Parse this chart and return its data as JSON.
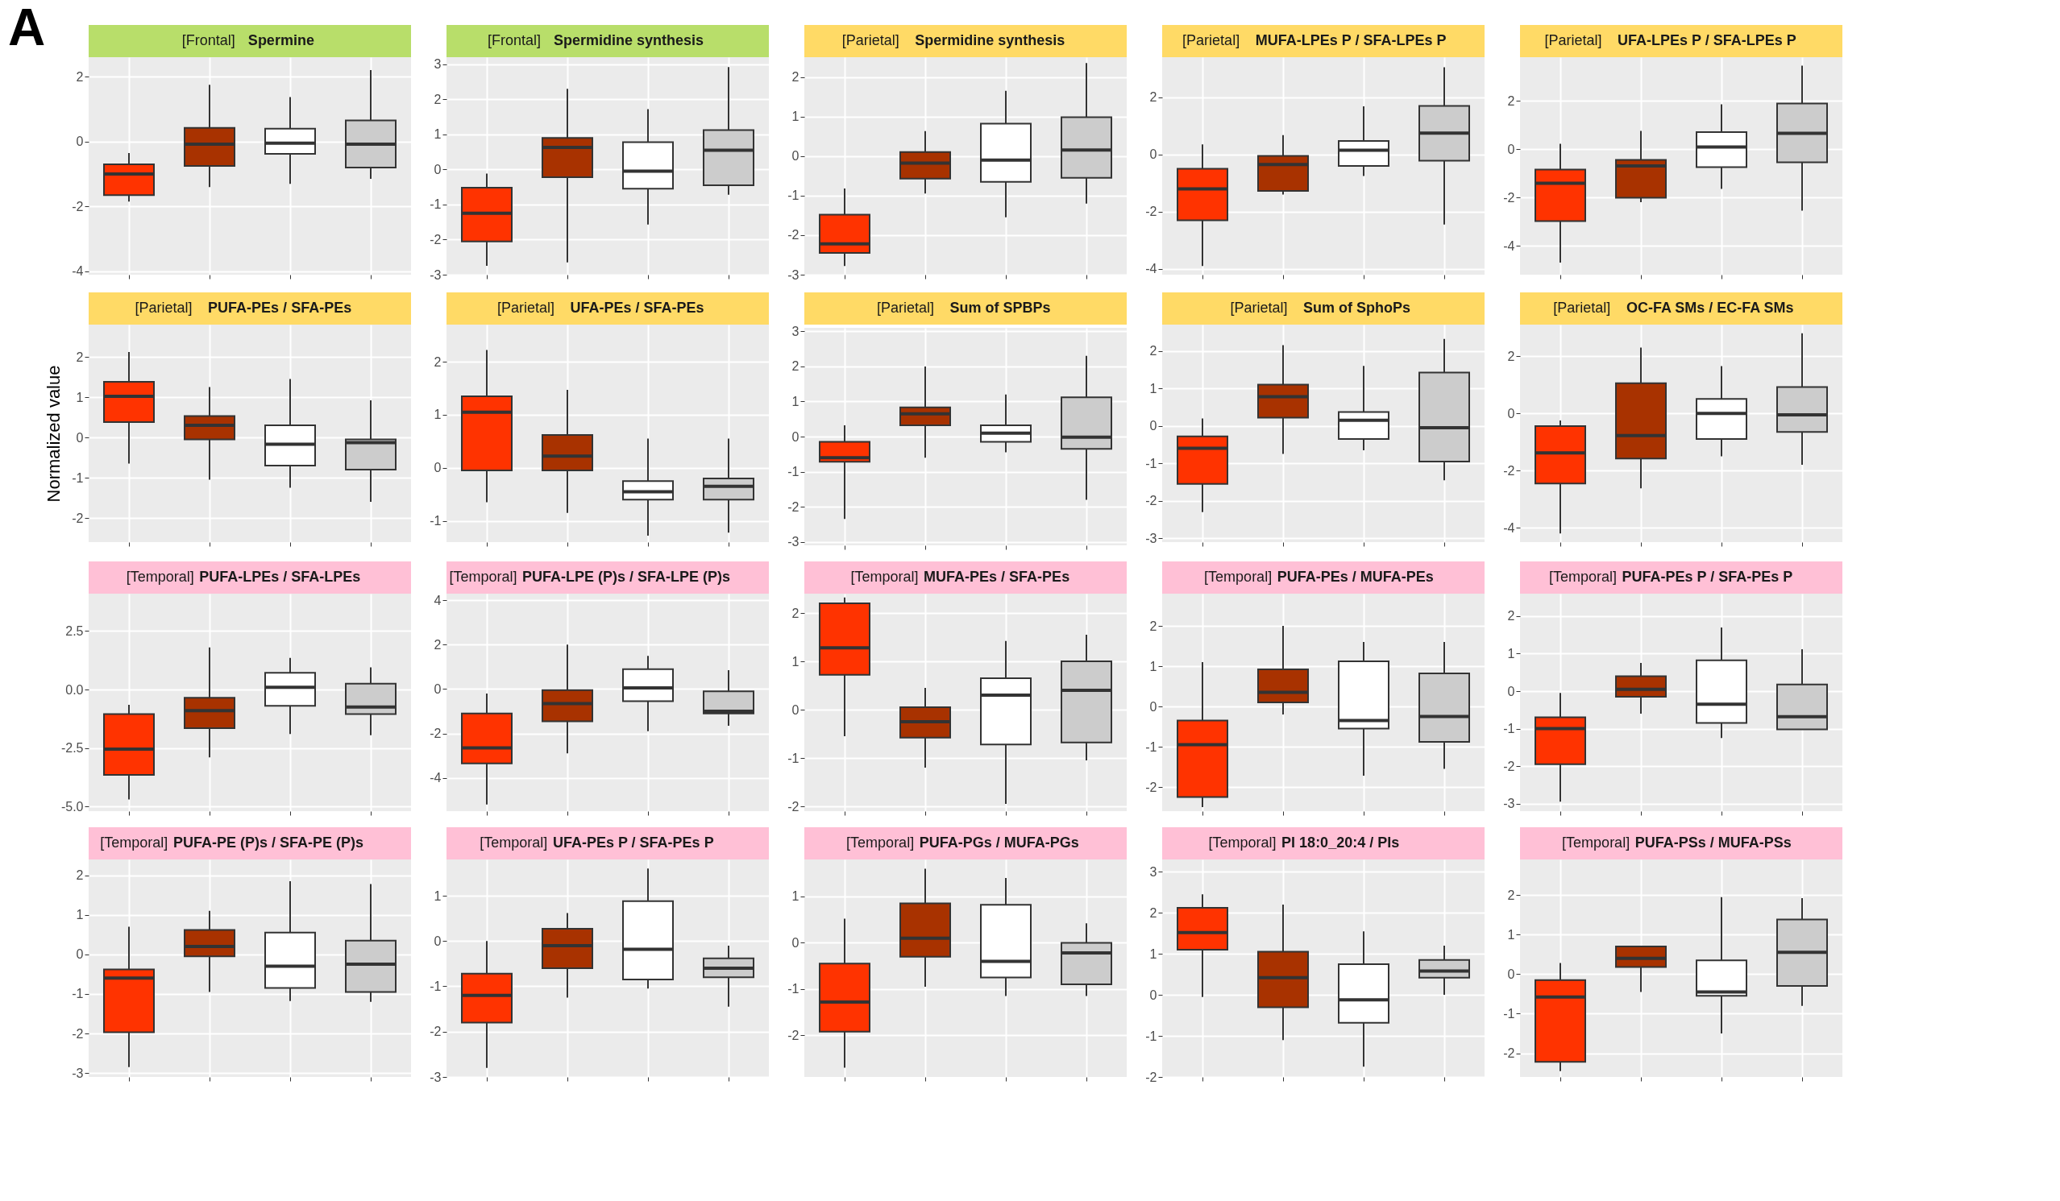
{
  "chart_data": [
    {
      "type": "box",
      "title": "[Frontal] Spermine",
      "annotations": [
        "A"
      ],
      "categories": [
        null,
        null,
        null,
        null
      ],
      "colors": [
        "#ff3300",
        "#a83200",
        "#ffffff",
        "#cccccc"
      ],
      "ylim": [
        -4.1,
        2.6
      ],
      "yticks": [
        -4,
        -2,
        0,
        2
      ],
      "grid": true,
      "tick_labels": "y",
      "boxes": [
        {
          "low": -1.85,
          "q1": -1.65,
          "median": -1.0,
          "q3": -0.7,
          "high": -0.35
        },
        {
          "low": -1.4,
          "q1": -0.75,
          "median": -0.08,
          "q3": 0.42,
          "high": 1.75
        },
        {
          "low": -1.3,
          "q1": -0.38,
          "median": -0.05,
          "q3": 0.4,
          "high": 1.37
        },
        {
          "low": -1.15,
          "q1": -0.8,
          "median": -0.08,
          "q3": 0.65,
          "high": 2.2
        }
      ]
    },
    {
      "type": "box",
      "title": "[Frontal] Spermidine synthesis",
      "categories": [
        null,
        null,
        null,
        null
      ],
      "colors": [
        "#ff3300",
        "#a83200",
        "#ffffff",
        "#cccccc"
      ],
      "ylim": [
        -3,
        3.2
      ],
      "yticks": [
        -3,
        -2,
        -1,
        0,
        1,
        2,
        3
      ],
      "grid": true,
      "tick_labels": "y",
      "boxes": [
        {
          "low": -2.75,
          "q1": -2.05,
          "median": -1.25,
          "q3": -0.52,
          "high": -0.12
        },
        {
          "low": -2.65,
          "q1": -0.22,
          "median": 0.63,
          "q3": 0.9,
          "high": 2.3
        },
        {
          "low": -1.57,
          "q1": -0.55,
          "median": -0.05,
          "q3": 0.78,
          "high": 1.72
        },
        {
          "low": -0.72,
          "q1": -0.45,
          "median": 0.55,
          "q3": 1.12,
          "high": 2.92
        }
      ]
    },
    {
      "type": "box",
      "title": "[Parietal] Spermidine synthesis",
      "categories": [
        null,
        null,
        null,
        null
      ],
      "colors": [
        "#ff3300",
        "#a83200",
        "#ffffff",
        "#cccccc"
      ],
      "ylim": [
        -3,
        2.5
      ],
      "yticks": [
        -3,
        -2,
        -1,
        0,
        1,
        2
      ],
      "grid": true,
      "tick_labels": "y",
      "boxes": [
        {
          "low": -2.78,
          "q1": -2.45,
          "median": -2.22,
          "q3": -1.48,
          "high": -0.82
        },
        {
          "low": -0.95,
          "q1": -0.57,
          "median": -0.18,
          "q3": 0.1,
          "high": 0.63
        },
        {
          "low": -1.55,
          "q1": -0.65,
          "median": -0.1,
          "q3": 0.82,
          "high": 1.65
        },
        {
          "low": -1.2,
          "q1": -0.55,
          "median": 0.15,
          "q3": 0.98,
          "high": 2.35
        }
      ]
    },
    {
      "type": "box",
      "title": "[Parietal] MUFA-LPEs P / SFA-LPEs P",
      "categories": [
        null,
        null,
        null,
        null
      ],
      "colors": [
        "#ff3300",
        "#a83200",
        "#ffffff",
        "#cccccc"
      ],
      "ylim": [
        -4.2,
        3.4
      ],
      "yticks": [
        -4,
        -2,
        0,
        2
      ],
      "grid": true,
      "tick_labels": "y",
      "boxes": [
        {
          "low": -3.9,
          "q1": -2.3,
          "median": -1.2,
          "q3": -0.5,
          "high": 0.35
        },
        {
          "low": -1.4,
          "q1": -1.27,
          "median": -0.35,
          "q3": -0.05,
          "high": 0.68
        },
        {
          "low": -0.75,
          "q1": -0.4,
          "median": 0.15,
          "q3": 0.47,
          "high": 1.68
        },
        {
          "low": -2.45,
          "q1": -0.22,
          "median": 0.75,
          "q3": 1.7,
          "high": 3.05
        }
      ]
    },
    {
      "type": "box",
      "title": "[Parietal] UFA-LPEs P / SFA-LPEs P",
      "categories": [
        null,
        null,
        null,
        null
      ],
      "colors": [
        "#ff3300",
        "#a83200",
        "#ffffff",
        "#cccccc"
      ],
      "ylim": [
        -5.2,
        3.8
      ],
      "yticks": [
        -4,
        -2,
        0,
        2
      ],
      "grid": true,
      "tick_labels": "y",
      "boxes": [
        {
          "low": -4.7,
          "q1": -2.98,
          "median": -1.42,
          "q3": -0.85,
          "high": 0.22
        },
        {
          "low": -2.2,
          "q1": -2.02,
          "median": -0.7,
          "q3": -0.45,
          "high": 0.75
        },
        {
          "low": -1.65,
          "q1": -0.75,
          "median": 0.08,
          "q3": 0.7,
          "high": 1.85
        },
        {
          "low": -2.55,
          "q1": -0.55,
          "median": 0.65,
          "q3": 1.88,
          "high": 3.45
        }
      ]
    },
    {
      "type": "box",
      "title": "[Parietal] PUFA-PEs / SFA-PEs",
      "ylabel": "Normalized value",
      "categories": [
        null,
        null,
        null,
        null
      ],
      "colors": [
        "#ff3300",
        "#a83200",
        "#ffffff",
        "#cccccc"
      ],
      "ylim": [
        -2.6,
        2.8
      ],
      "yticks": [
        -2,
        -1,
        0,
        1,
        2
      ],
      "grid": true,
      "tick_labels": "y",
      "boxes": [
        {
          "low": -0.65,
          "q1": 0.38,
          "median": 1.02,
          "q3": 1.38,
          "high": 2.12
        },
        {
          "low": -1.05,
          "q1": -0.05,
          "median": 0.3,
          "q3": 0.53,
          "high": 1.25
        },
        {
          "low": -1.25,
          "q1": -0.7,
          "median": -0.17,
          "q3": 0.3,
          "high": 1.45
        },
        {
          "low": -1.6,
          "q1": -0.8,
          "median": -0.13,
          "q3": -0.05,
          "high": 0.92
        }
      ]
    },
    {
      "type": "box",
      "title": "[Parietal] UFA-PEs / SFA-PEs",
      "categories": [
        null,
        null,
        null,
        null
      ],
      "colors": [
        "#ff3300",
        "#a83200",
        "#ffffff",
        "#cccccc"
      ],
      "ylim": [
        -1.4,
        2.7
      ],
      "yticks": [
        -1,
        0,
        1,
        2
      ],
      "grid": true,
      "tick_labels": "y",
      "boxes": [
        {
          "low": -0.65,
          "q1": -0.05,
          "median": 1.05,
          "q3": 1.35,
          "high": 2.22
        },
        {
          "low": -0.85,
          "q1": -0.05,
          "median": 0.22,
          "q3": 0.62,
          "high": 1.47
        },
        {
          "low": -1.28,
          "q1": -0.6,
          "median": -0.45,
          "q3": -0.25,
          "high": 0.55
        },
        {
          "low": -1.22,
          "q1": -0.6,
          "median": -0.35,
          "q3": -0.2,
          "high": 0.55
        }
      ]
    },
    {
      "type": "box",
      "title": "[Parietal] Sum of SPBPs",
      "categories": [
        null,
        null,
        null,
        null
      ],
      "colors": [
        "#ff3300",
        "#a83200",
        "#ffffff",
        "#cccccc"
      ],
      "ylim": [
        -3.1,
        3.1
      ],
      "yticks": [
        -3,
        -2,
        -1,
        0,
        1,
        2,
        3
      ],
      "grid": true,
      "tick_labels": "y",
      "boxes": [
        {
          "low": -2.35,
          "q1": -0.72,
          "median": -0.6,
          "q3": -0.15,
          "high": 0.32
        },
        {
          "low": -0.6,
          "q1": 0.32,
          "median": 0.65,
          "q3": 0.83,
          "high": 2.0
        },
        {
          "low": -0.45,
          "q1": -0.15,
          "median": 0.1,
          "q3": 0.32,
          "high": 1.2
        },
        {
          "low": -1.8,
          "q1": -0.35,
          "median": -0.02,
          "q3": 1.12,
          "high": 2.3
        }
      ]
    },
    {
      "type": "box",
      "title": "[Parietal] Sum of SphoPs",
      "categories": [
        null,
        null,
        null,
        null
      ],
      "colors": [
        "#ff3300",
        "#a83200",
        "#ffffff",
        "#cccccc"
      ],
      "ylim": [
        -3.1,
        2.7
      ],
      "yticks": [
        -3,
        -2,
        -1,
        0,
        1,
        2
      ],
      "grid": true,
      "tick_labels": "y",
      "boxes": [
        {
          "low": -2.3,
          "q1": -1.55,
          "median": -0.6,
          "q3": -0.28,
          "high": 0.2
        },
        {
          "low": -0.75,
          "q1": 0.22,
          "median": 0.78,
          "q3": 1.1,
          "high": 2.15
        },
        {
          "low": -0.65,
          "q1": -0.35,
          "median": 0.15,
          "q3": 0.37,
          "high": 1.6
        },
        {
          "low": -1.45,
          "q1": -0.95,
          "median": -0.05,
          "q3": 1.42,
          "high": 2.32
        }
      ]
    },
    {
      "type": "box",
      "title": "[Parietal] OC-FA SMs / EC-FA SMs",
      "categories": [
        null,
        null,
        null,
        null
      ],
      "colors": [
        "#ff3300",
        "#a83200",
        "#ffffff",
        "#cccccc"
      ],
      "ylim": [
        -4.5,
        3.1
      ],
      "yticks": [
        -4,
        -2,
        0,
        2
      ],
      "grid": true,
      "tick_labels": "y",
      "boxes": [
        {
          "low": -4.2,
          "q1": -2.45,
          "median": -1.38,
          "q3": -0.45,
          "high": -0.25
        },
        {
          "low": -2.62,
          "q1": -1.58,
          "median": -0.78,
          "q3": 1.05,
          "high": 2.3
        },
        {
          "low": -1.5,
          "q1": -0.9,
          "median": 0.0,
          "q3": 0.5,
          "high": 1.65
        },
        {
          "low": -1.8,
          "q1": -0.65,
          "median": -0.05,
          "q3": 0.92,
          "high": 2.8
        }
      ]
    },
    {
      "type": "box",
      "title": "[Temporal] PUFA-LPEs / SFA-LPEs",
      "categories": [
        null,
        null,
        null,
        null
      ],
      "colors": [
        "#ff3300",
        "#a83200",
        "#ffffff",
        "#cccccc"
      ],
      "ylim": [
        -5.2,
        4.1
      ],
      "yticks": [
        {
          "value": -5,
          "label": "-5.0"
        },
        {
          "value": -2.5,
          "label": "-2.5"
        },
        {
          "value": 0,
          "label": "0.0"
        },
        {
          "value": 2.5,
          "label": "2.5"
        }
      ],
      "grid": true,
      "tick_labels": "y",
      "boxes": [
        {
          "low": -4.7,
          "q1": -3.65,
          "median": -2.55,
          "q3": -1.05,
          "high": -0.65
        },
        {
          "low": -2.9,
          "q1": -1.65,
          "median": -0.9,
          "q3": -0.35,
          "high": 1.8
        },
        {
          "low": -1.9,
          "q1": -0.7,
          "median": 0.1,
          "q3": 0.72,
          "high": 1.35
        },
        {
          "low": -1.95,
          "q1": -1.05,
          "median": -0.75,
          "q3": 0.25,
          "high": 0.95
        }
      ]
    },
    {
      "type": "box",
      "title": "[Temporal] PUFA-LPE (P)s / SFA-LPE (P)s",
      "categories": [
        null,
        null,
        null,
        null
      ],
      "colors": [
        "#ff3300",
        "#a83200",
        "#ffffff",
        "#cccccc"
      ],
      "ylim": [
        -5.5,
        4.3
      ],
      "yticks": [
        -4,
        -2,
        0,
        2,
        4
      ],
      "grid": true,
      "tick_labels": "y",
      "boxes": [
        {
          "low": -5.2,
          "q1": -3.35,
          "median": -2.65,
          "q3": -1.1,
          "high": -0.2
        },
        {
          "low": -2.9,
          "q1": -1.45,
          "median": -0.65,
          "q3": -0.05,
          "high": 2.0
        },
        {
          "low": -1.9,
          "q1": -0.55,
          "median": 0.05,
          "q3": 0.9,
          "high": 1.5
        },
        {
          "low": -1.65,
          "q1": -1.1,
          "median": -1.0,
          "q3": -0.1,
          "high": 0.85
        }
      ]
    },
    {
      "type": "box",
      "title": "[Temporal] MUFA-PEs / SFA-PEs",
      "categories": [
        null,
        null,
        null,
        null
      ],
      "colors": [
        "#ff3300",
        "#a83200",
        "#ffffff",
        "#cccccc"
      ],
      "ylim": [
        -2.1,
        2.4
      ],
      "yticks": [
        -2,
        -1,
        0,
        1,
        2
      ],
      "grid": true,
      "tick_labels": "y",
      "boxes": [
        {
          "low": -0.55,
          "q1": 0.72,
          "median": 1.28,
          "q3": 2.2,
          "high": 2.32
        },
        {
          "low": -1.2,
          "q1": -0.58,
          "median": -0.25,
          "q3": 0.05,
          "high": 0.45
        },
        {
          "low": -1.95,
          "q1": -0.72,
          "median": 0.3,
          "q3": 0.65,
          "high": 1.42
        },
        {
          "low": -1.05,
          "q1": -0.68,
          "median": 0.4,
          "q3": 1.0,
          "high": 1.55
        }
      ]
    },
    {
      "type": "box",
      "title": "[Temporal] PUFA-PEs / MUFA-PEs",
      "categories": [
        null,
        null,
        null,
        null
      ],
      "colors": [
        "#ff3300",
        "#a83200",
        "#ffffff",
        "#cccccc"
      ],
      "ylim": [
        -2.6,
        2.8
      ],
      "yticks": [
        -2,
        -1,
        0,
        1,
        2
      ],
      "grid": true,
      "tick_labels": "y",
      "boxes": [
        {
          "low": -2.5,
          "q1": -2.25,
          "median": -0.95,
          "q3": -0.35,
          "high": 1.1
        },
        {
          "low": -0.2,
          "q1": 0.1,
          "median": 0.35,
          "q3": 0.92,
          "high": 2.0
        },
        {
          "low": -1.72,
          "q1": -0.55,
          "median": -0.35,
          "q3": 1.12,
          "high": 1.6
        },
        {
          "low": -1.55,
          "q1": -0.88,
          "median": -0.25,
          "q3": 0.82,
          "high": 1.6
        }
      ]
    },
    {
      "type": "box",
      "title": "[Temporal] PUFA-PEs P / SFA-PEs P",
      "categories": [
        null,
        null,
        null,
        null
      ],
      "colors": [
        "#ff3300",
        "#a83200",
        "#ffffff",
        "#cccccc"
      ],
      "ylim": [
        -3.2,
        2.6
      ],
      "yticks": [
        -3,
        -2,
        -1,
        0,
        1,
        2
      ],
      "grid": true,
      "tick_labels": "y",
      "boxes": [
        {
          "low": -2.95,
          "q1": -1.95,
          "median": -1.0,
          "q3": -0.7,
          "high": -0.05
        },
        {
          "low": -0.6,
          "q1": -0.15,
          "median": 0.05,
          "q3": 0.4,
          "high": 0.75
        },
        {
          "low": -1.25,
          "q1": -0.85,
          "median": -0.35,
          "q3": 0.82,
          "high": 1.7
        },
        {
          "low": -1.02,
          "q1": -1.02,
          "median": -0.68,
          "q3": 0.18,
          "high": 1.12
        }
      ]
    },
    {
      "type": "box",
      "title": "[Temporal] PUFA-PE (P)s / SFA-PE (P)s",
      "categories": [
        null,
        null,
        null,
        null
      ],
      "colors": [
        "#ff3300",
        "#a83200",
        "#ffffff",
        "#cccccc"
      ],
      "ylim": [
        -3.1,
        2.4
      ],
      "yticks": [
        -3,
        -2,
        -1,
        0,
        1,
        2
      ],
      "grid": true,
      "tick_labels": "y",
      "boxes": [
        {
          "low": -2.85,
          "q1": -1.97,
          "median": -0.6,
          "q3": -0.38,
          "high": 0.7
        },
        {
          "low": -0.95,
          "q1": -0.05,
          "median": 0.2,
          "q3": 0.62,
          "high": 1.1
        },
        {
          "low": -1.18,
          "q1": -0.85,
          "median": -0.3,
          "q3": 0.55,
          "high": 1.85
        },
        {
          "low": -1.2,
          "q1": -0.95,
          "median": -0.25,
          "q3": 0.35,
          "high": 1.78
        }
      ]
    },
    {
      "type": "box",
      "title": "[Temporal] UFA-PEs P / SFA-PEs P",
      "categories": [
        null,
        null,
        null,
        null
      ],
      "colors": [
        "#ff3300",
        "#a83200",
        "#ffffff",
        "#cccccc"
      ],
      "ylim": [
        -3.0,
        1.8
      ],
      "yticks": [
        -3,
        -2,
        -1,
        0,
        1
      ],
      "grid": true,
      "tick_labels": "y",
      "boxes": [
        {
          "low": -2.8,
          "q1": -1.8,
          "median": -1.2,
          "q3": -0.72,
          "high": 0.0
        },
        {
          "low": -1.25,
          "q1": -0.6,
          "median": -0.1,
          "q3": 0.27,
          "high": 0.62
        },
        {
          "low": -1.05,
          "q1": -0.85,
          "median": -0.18,
          "q3": 0.88,
          "high": 1.6
        },
        {
          "low": -1.45,
          "q1": -0.8,
          "median": -0.6,
          "q3": -0.38,
          "high": -0.1
        }
      ]
    },
    {
      "type": "box",
      "title": "[Temporal] PUFA-PGs / MUFA-PGs",
      "categories": [
        null,
        null,
        null,
        null
      ],
      "colors": [
        "#ff3300",
        "#a83200",
        "#ffffff",
        "#cccccc"
      ],
      "ylim": [
        -2.9,
        1.8
      ],
      "yticks": [
        -2,
        -1,
        0,
        1
      ],
      "grid": true,
      "tick_labels": "y",
      "boxes": [
        {
          "low": -2.7,
          "q1": -1.92,
          "median": -1.28,
          "q3": -0.45,
          "high": 0.52
        },
        {
          "low": -0.95,
          "q1": -0.3,
          "median": 0.1,
          "q3": 0.85,
          "high": 1.6
        },
        {
          "low": -1.15,
          "q1": -0.75,
          "median": -0.4,
          "q3": 0.82,
          "high": 1.4
        },
        {
          "low": -1.15,
          "q1": -0.9,
          "median": -0.22,
          "q3": 0.0,
          "high": 0.42
        }
      ]
    },
    {
      "type": "box",
      "title": "[Temporal] PI 18:0_20:4 / PIs",
      "categories": [
        null,
        null,
        null,
        null
      ],
      "colors": [
        "#ff3300",
        "#a83200",
        "#ffffff",
        "#cccccc"
      ],
      "ylim": [
        -2.0,
        3.3
      ],
      "yticks": [
        -2,
        -1,
        0,
        1,
        2,
        3
      ],
      "grid": true,
      "tick_labels": "y",
      "boxes": [
        {
          "low": -0.05,
          "q1": 1.1,
          "median": 1.52,
          "q3": 2.12,
          "high": 2.45
        },
        {
          "low": -1.1,
          "q1": -0.3,
          "median": 0.42,
          "q3": 1.05,
          "high": 2.2
        },
        {
          "low": -1.75,
          "q1": -0.68,
          "median": -0.12,
          "q3": 0.75,
          "high": 1.55
        },
        {
          "low": 0.0,
          "q1": 0.42,
          "median": 0.58,
          "q3": 0.85,
          "high": 1.2
        }
      ]
    },
    {
      "type": "box",
      "title": "[Temporal] PUFA-PSs / MUFA-PSs",
      "categories": [
        null,
        null,
        null,
        null
      ],
      "colors": [
        "#ff3300",
        "#a83200",
        "#ffffff",
        "#cccccc"
      ],
      "ylim": [
        -2.6,
        2.9
      ],
      "yticks": [
        -2,
        -1,
        0,
        1,
        2
      ],
      "grid": true,
      "tick_labels": "y",
      "boxes": [
        {
          "low": -2.45,
          "q1": -2.22,
          "median": -0.58,
          "q3": -0.15,
          "high": 0.28
        },
        {
          "low": -0.45,
          "q1": 0.18,
          "median": 0.4,
          "q3": 0.7,
          "high": 0.72
        },
        {
          "low": -1.5,
          "q1": -0.55,
          "median": -0.45,
          "q3": 0.35,
          "high": 1.95
        },
        {
          "low": -0.8,
          "q1": -0.3,
          "median": 0.55,
          "q3": 1.38,
          "high": 1.92
        }
      ]
    }
  ]
}
